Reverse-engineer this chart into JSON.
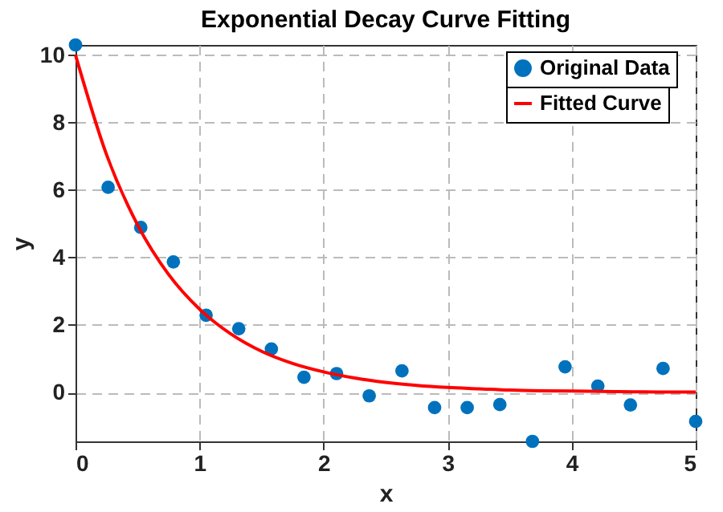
{
  "chart_data": {
    "type": "scatter",
    "title": "Exponential Decay Curve Fitting",
    "xlabel": "x",
    "ylabel": "y",
    "xlim": [
      0,
      5
    ],
    "xticks": [
      0,
      1,
      2,
      3,
      4,
      5
    ],
    "ylim": [
      -1.45,
      10.3
    ],
    "yticks": [
      0,
      2,
      4,
      6,
      8,
      10
    ],
    "grid": true,
    "legend": "top right",
    "series": [
      {
        "name": "Original Data",
        "marker": "circle",
        "color": "#0072bd",
        "x": [
          0,
          0.263,
          0.526,
          0.789,
          1.053,
          1.316,
          1.579,
          1.842,
          2.105,
          2.368,
          2.632,
          2.895,
          3.158,
          3.421,
          3.684,
          3.947,
          4.211,
          4.474,
          4.737,
          5.0
        ],
        "values": [
          10.3,
          6.08,
          4.89,
          3.87,
          2.29,
          1.89,
          1.29,
          0.45,
          0.56,
          -0.1,
          0.64,
          -0.45,
          -0.45,
          -0.36,
          -1.45,
          0.76,
          0.19,
          -0.37,
          0.71,
          -0.86
        ]
      },
      {
        "name": "Fitted Curve",
        "type": "line",
        "line_style": "solid",
        "color": "#ff0000",
        "x": [
          0,
          0.25,
          0.5,
          0.75,
          1,
          1.25,
          1.5,
          1.75,
          2,
          2.25,
          2.5,
          2.75,
          3,
          3.25,
          3.5,
          3.75,
          4,
          4.25,
          4.5,
          4.75,
          5
        ],
        "values": [
          10,
          7.05,
          4.97,
          3.5,
          2.47,
          1.74,
          1.22,
          0.86,
          0.61,
          0.43,
          0.3,
          0.21,
          0.15,
          0.11,
          0.07,
          0.05,
          0.04,
          0.03,
          0.02,
          0.01,
          0.01
        ]
      }
    ]
  }
}
